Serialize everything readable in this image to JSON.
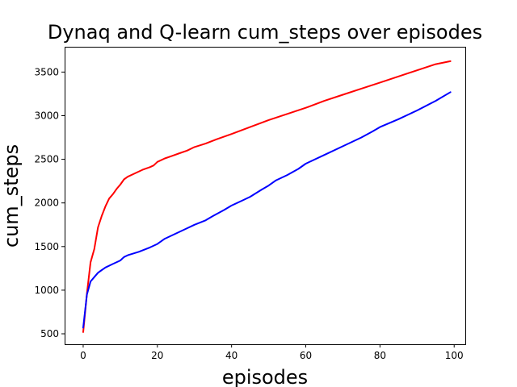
{
  "chart_data": {
    "type": "line",
    "title": "Dynaq and Q-learn cum_steps over episodes",
    "xlabel": "episodes",
    "ylabel": "cum_steps",
    "xlim": [
      -5,
      103
    ],
    "ylim": [
      380,
      3790
    ],
    "x_ticks": [
      0,
      20,
      40,
      60,
      80,
      100
    ],
    "y_ticks": [
      500,
      1000,
      1500,
      2000,
      2500,
      3000,
      3500
    ],
    "grid": false,
    "series": [
      {
        "color": "#ff0000",
        "x": [
          0,
          1,
          2,
          3,
          4,
          5,
          6,
          7,
          8,
          9,
          10,
          11,
          12,
          14,
          16,
          18,
          19,
          20,
          22,
          24,
          26,
          28,
          30,
          33,
          36,
          40,
          45,
          50,
          55,
          60,
          65,
          70,
          75,
          80,
          85,
          90,
          95,
          99
        ],
        "y": [
          520,
          960,
          1320,
          1470,
          1720,
          1850,
          1960,
          2050,
          2100,
          2160,
          2210,
          2270,
          2300,
          2340,
          2380,
          2410,
          2430,
          2470,
          2510,
          2540,
          2570,
          2600,
          2640,
          2680,
          2730,
          2790,
          2870,
          2950,
          3020,
          3090,
          3170,
          3240,
          3310,
          3380,
          3450,
          3520,
          3590,
          3625
        ]
      },
      {
        "color": "#0000ff",
        "x": [
          0,
          1,
          2,
          3,
          4,
          5,
          6,
          8,
          10,
          11,
          12,
          15,
          18,
          20,
          22,
          25,
          28,
          30,
          33,
          35,
          38,
          40,
          43,
          45,
          48,
          50,
          52,
          55,
          58,
          60,
          65,
          70,
          75,
          78,
          80,
          85,
          90,
          95,
          99
        ],
        "y": [
          570,
          950,
          1100,
          1150,
          1200,
          1230,
          1260,
          1300,
          1340,
          1380,
          1400,
          1440,
          1490,
          1530,
          1590,
          1650,
          1710,
          1750,
          1800,
          1850,
          1920,
          1970,
          2030,
          2070,
          2150,
          2200,
          2260,
          2320,
          2390,
          2450,
          2550,
          2650,
          2750,
          2820,
          2870,
          2960,
          3060,
          3170,
          3270
        ]
      }
    ]
  }
}
